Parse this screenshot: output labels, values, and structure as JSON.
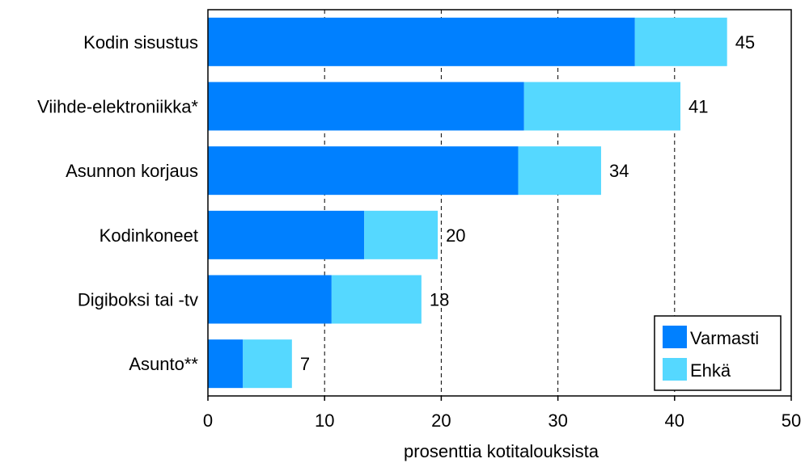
{
  "chart_data": {
    "type": "bar",
    "orientation": "horizontal",
    "stacked": true,
    "categories": [
      "Kodin sisustus",
      "Viihde-elektroniikka*",
      "Asunnon korjaus",
      "Kodinkoneet",
      "Digiboksi tai -tv",
      "Asunto**"
    ],
    "series": [
      {
        "name": "Varmasti",
        "color": "#0080ff",
        "values": [
          36.6,
          27.1,
          26.6,
          13.4,
          10.6,
          3.0
        ]
      },
      {
        "name": "Ehkä",
        "color": "#55d8ff",
        "values": [
          7.9,
          13.4,
          7.1,
          6.3,
          7.7,
          4.2
        ]
      }
    ],
    "totals": [
      "45",
      "41",
      "34",
      "20",
      "18",
      "7"
    ],
    "xlabel": "prosenttia kotitalouksista",
    "xlim": [
      0,
      50
    ],
    "xticks": [
      "0",
      "10",
      "20",
      "30",
      "40",
      "50"
    ],
    "grid": "vertical-dashed",
    "legend_position": "bottom-right"
  }
}
